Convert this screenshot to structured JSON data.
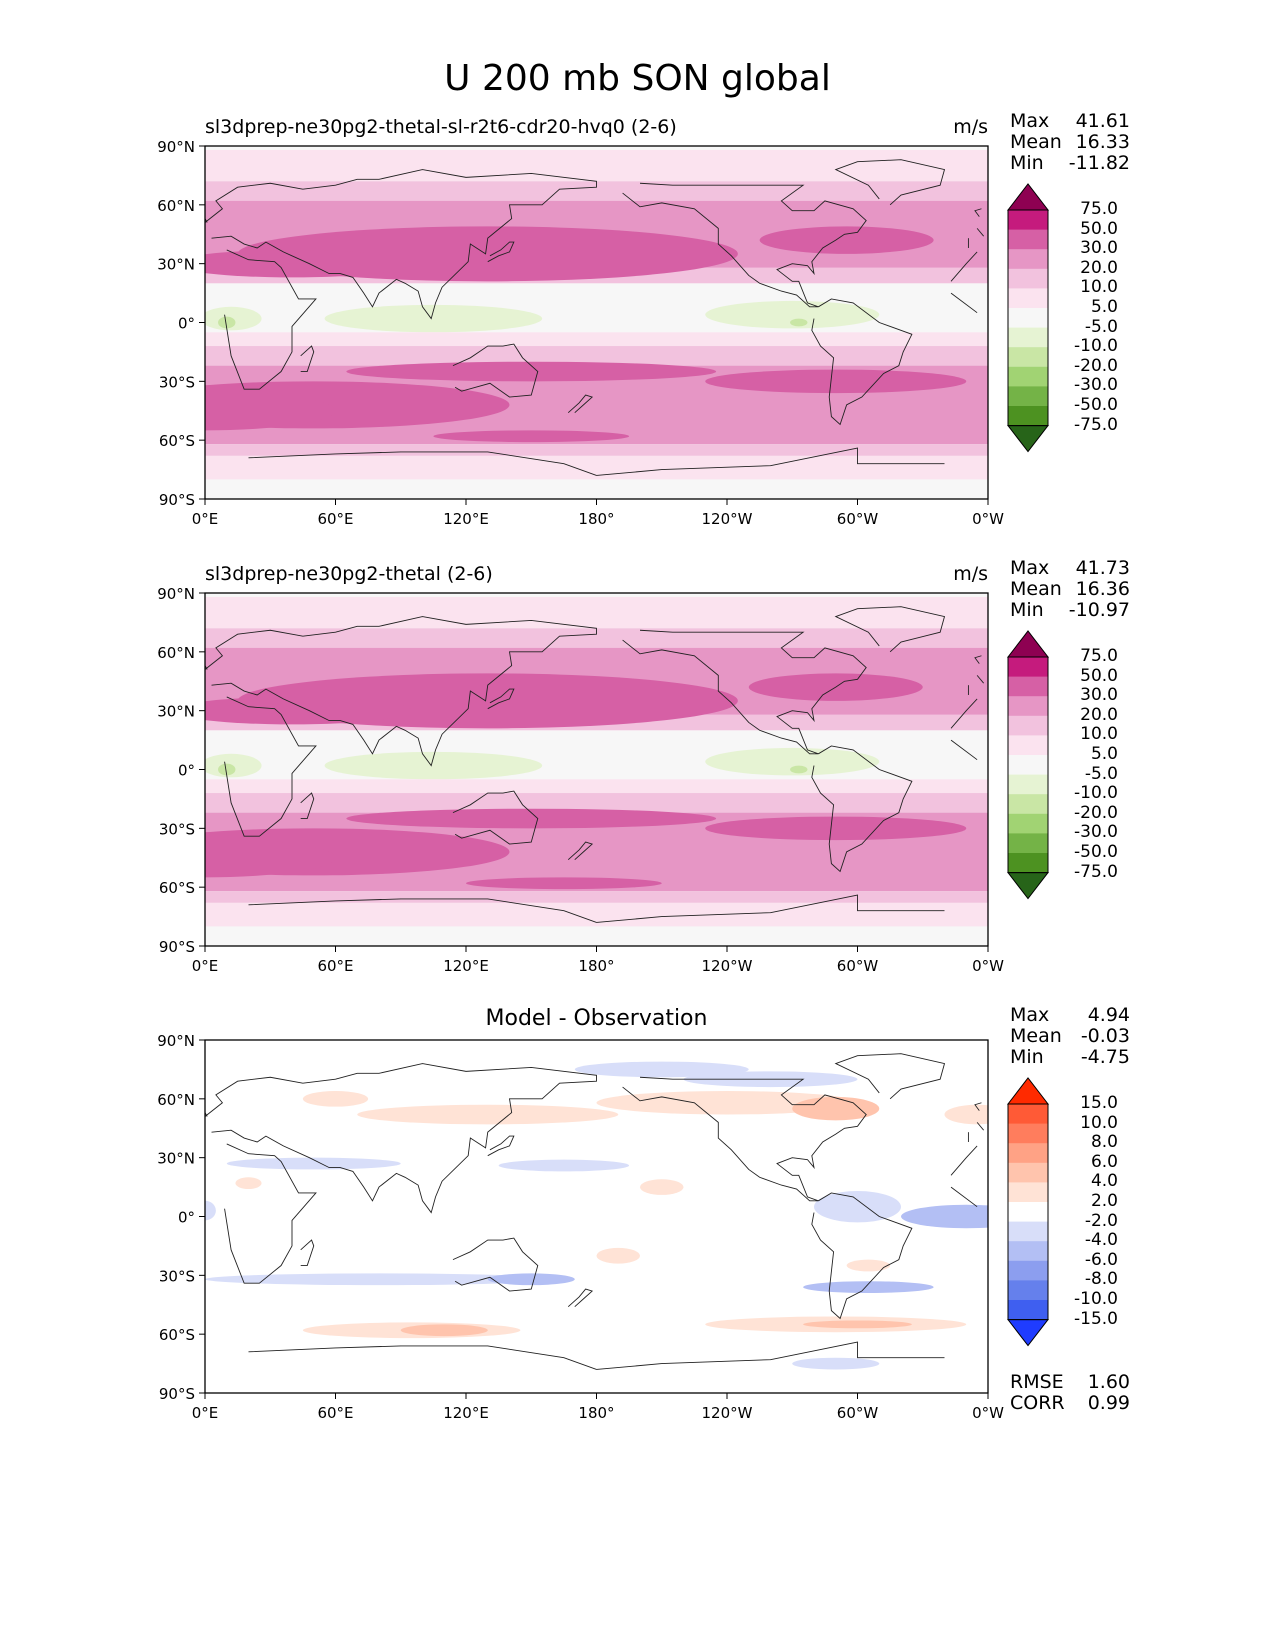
{
  "figure_title": "U 200 mb SON global",
  "panels": [
    {
      "label": "sl3dprep-ne30pg2-thetal-sl-r2t6-cdr20-hvq0 (2-6)",
      "units": "m/s",
      "stats": [
        {
          "name": "Max",
          "value": "41.61"
        },
        {
          "name": "Mean",
          "value": "16.33"
        },
        {
          "name": "Min",
          "value": "-11.82"
        }
      ],
      "colorbar_id": "wind"
    },
    {
      "label": "sl3dprep-ne30pg2-thetal (2-6)",
      "units": "m/s",
      "stats": [
        {
          "name": "Max",
          "value": "41.73"
        },
        {
          "name": "Mean",
          "value": "16.36"
        },
        {
          "name": "Min",
          "value": "-10.97"
        }
      ],
      "colorbar_id": "wind"
    },
    {
      "label": "Model - Observation",
      "units": "",
      "stats": [
        {
          "name": "Max",
          "value": "4.94"
        },
        {
          "name": "Mean",
          "value": "-0.03"
        },
        {
          "name": "Min",
          "value": "-4.75"
        }
      ],
      "extra_stats": [
        {
          "name": "RMSE",
          "value": "1.60"
        },
        {
          "name": "CORR",
          "value": "0.99"
        }
      ],
      "colorbar_id": "diff"
    }
  ],
  "axes": {
    "lat_ticks": [
      "90°N",
      "60°N",
      "30°N",
      "0°",
      "30°S",
      "60°S",
      "90°S"
    ],
    "lon_ticks": [
      "0°E",
      "60°E",
      "120°E",
      "180°",
      "120°W",
      "60°W",
      "0°W"
    ]
  },
  "colorbars": {
    "wind": {
      "labels": [
        "75.0",
        "50.0",
        "30.0",
        "20.0",
        "10.0",
        "5.0",
        "-5.0",
        "-10.0",
        "-20.0",
        "-30.0",
        "-50.0",
        "-75.0"
      ],
      "colors": [
        "#8e0152",
        "#c51b7d",
        "#d660a5",
        "#e696c5",
        "#f2c2de",
        "#fbe3ef",
        "#f7f7f7",
        "#e6f3d3",
        "#c9e6a5",
        "#a1d373",
        "#74b347",
        "#4d9221",
        "#276419"
      ]
    },
    "diff": {
      "labels": [
        "15.0",
        "10.0",
        "8.0",
        "6.0",
        "4.0",
        "2.0",
        "-2.0",
        "-4.0",
        "-6.0",
        "-8.0",
        "-10.0",
        "-15.0"
      ],
      "colors": [
        "#ff2a00",
        "#ff5a36",
        "#ff7d5d",
        "#ffa285",
        "#ffc4ad",
        "#ffe3d6",
        "#ffffff",
        "#d8def9",
        "#b3bff4",
        "#8c9eef",
        "#6580ec",
        "#3f5ff0",
        "#1f3cff"
      ]
    }
  },
  "chart_data": [
    {
      "type": "heatmap",
      "title": "sl3dprep-ne30pg2-thetal-sl-r2t6-cdr20-hvq0 (2-6)",
      "variable": "U 200 mb SON",
      "units": "m/s",
      "x_range": [
        0,
        360
      ],
      "y_range": [
        -90,
        90
      ],
      "levels": [
        -75,
        -50,
        -30,
        -20,
        -10,
        -5,
        5,
        10,
        20,
        30,
        50,
        75
      ],
      "zonal_bands_approx": [
        {
          "lat": 40,
          "value": 35
        },
        {
          "lat": 30,
          "value": 30
        },
        {
          "lat": 0,
          "value": -5
        },
        {
          "lat": -35,
          "value": 30
        },
        {
          "lat": -50,
          "value": 32
        },
        {
          "lat": -70,
          "value": 10
        }
      ],
      "max": 41.61,
      "mean": 16.33,
      "min": -11.82
    },
    {
      "type": "heatmap",
      "title": "sl3dprep-ne30pg2-thetal (2-6)",
      "variable": "U 200 mb SON",
      "units": "m/s",
      "x_range": [
        0,
        360
      ],
      "y_range": [
        -90,
        90
      ],
      "levels": [
        -75,
        -50,
        -30,
        -20,
        -10,
        -5,
        5,
        10,
        20,
        30,
        50,
        75
      ],
      "max": 41.73,
      "mean": 16.36,
      "min": -10.97
    },
    {
      "type": "heatmap",
      "title": "Model - Observation",
      "x_range": [
        0,
        360
      ],
      "y_range": [
        -90,
        90
      ],
      "levels": [
        -15,
        -10,
        -8,
        -6,
        -4,
        -2,
        2,
        4,
        6,
        8,
        10,
        15
      ],
      "max": 4.94,
      "mean": -0.03,
      "min": -4.75,
      "rmse": 1.6,
      "corr": 0.99
    }
  ]
}
